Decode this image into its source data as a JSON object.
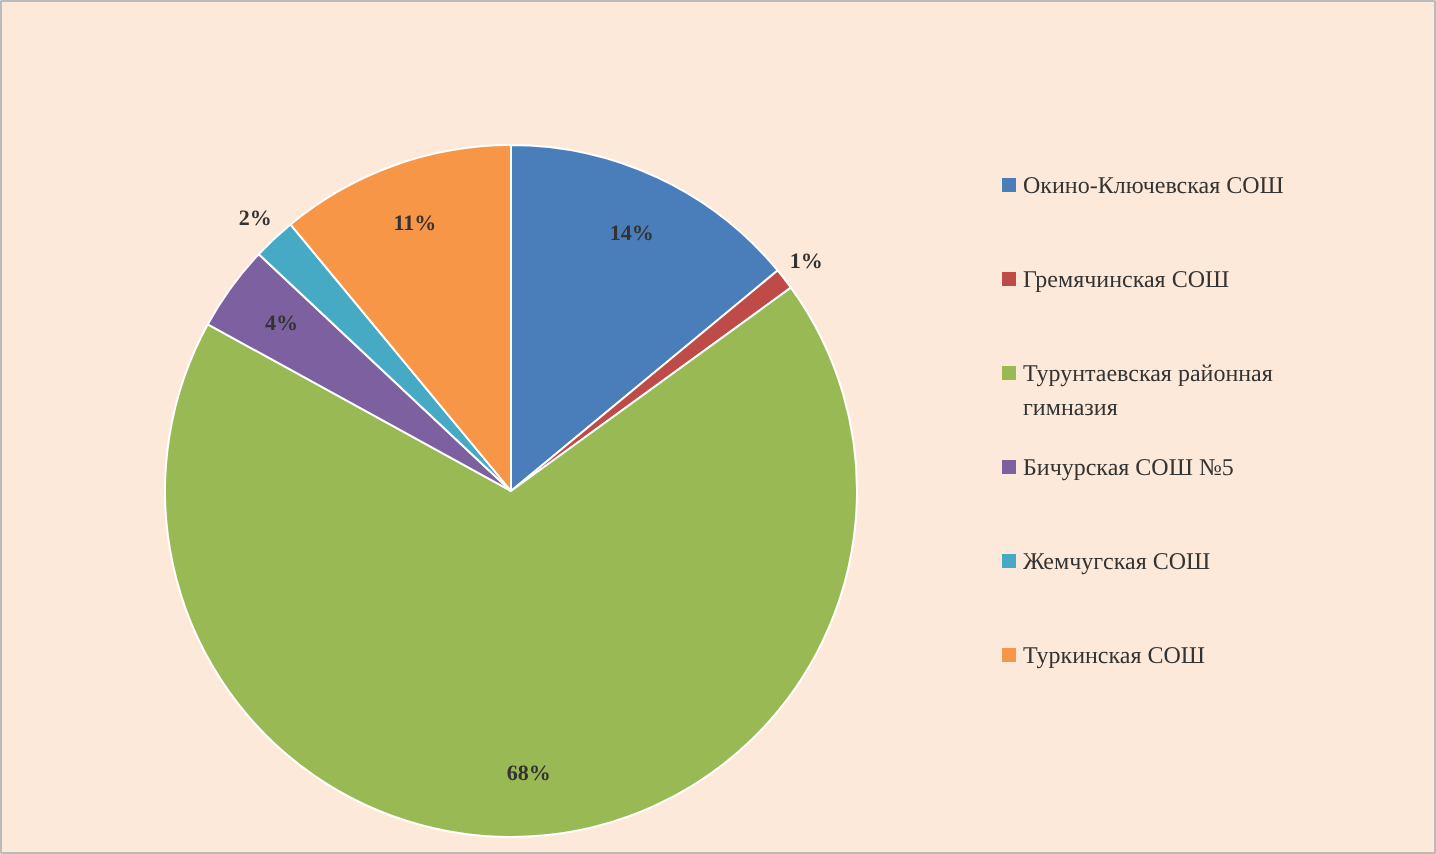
{
  "chart_data": {
    "type": "pie",
    "categories": [
      "Окино-Ключевская СОШ",
      "Гремячинская СОШ",
      "Турунтаевская районная гимназия",
      "Бичурская СОШ №5",
      "Жемчугская СОШ",
      "Туркинская СОШ"
    ],
    "values": [
      14,
      1,
      68,
      4,
      2,
      11
    ],
    "colors": [
      "#4a7ebb",
      "#be4b48",
      "#98b954",
      "#7d60a0",
      "#46aac5",
      "#f79646"
    ],
    "value_labels": [
      "14%",
      "1%",
      "68%",
      "4%",
      "2%",
      "11%"
    ],
    "legend": "right"
  }
}
